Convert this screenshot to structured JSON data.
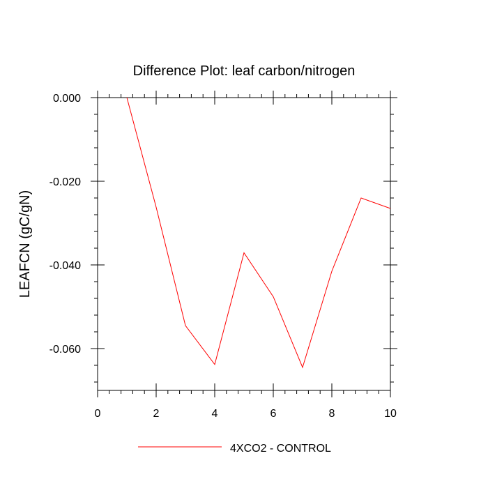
{
  "chart_data": {
    "type": "line",
    "title": "Difference Plot: leaf carbon/nitrogen",
    "xlabel": "",
    "ylabel": "LEAFCN  (gC/gN)",
    "xlim": [
      0,
      10
    ],
    "ylim": [
      -0.07,
      0.0
    ],
    "x_ticks": [
      0,
      2,
      4,
      6,
      8,
      10
    ],
    "x_tick_labels": [
      "0",
      "2",
      "4",
      "6",
      "8",
      "10"
    ],
    "y_ticks": [
      0.0,
      -0.02,
      -0.04,
      -0.06
    ],
    "y_tick_labels": [
      "0.000",
      "-0.020",
      "-0.040",
      "-0.060"
    ],
    "grid": false,
    "legend_position": "bottom-center",
    "series": [
      {
        "name": "4XCO2 - CONTROL",
        "color": "#ff0000",
        "x": [
          1,
          2,
          3,
          4,
          5,
          6,
          7,
          8,
          9,
          10
        ],
        "values": [
          0.0,
          -0.0262,
          -0.0545,
          -0.0638,
          -0.0371,
          -0.0476,
          -0.0645,
          -0.0415,
          -0.024,
          -0.0265
        ]
      }
    ]
  }
}
